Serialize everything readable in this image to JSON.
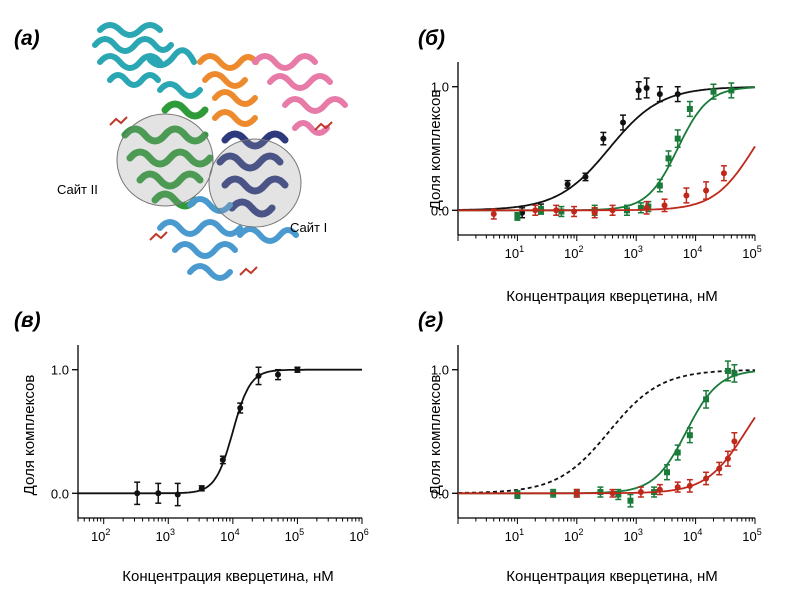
{
  "panels": {
    "a": {
      "letter": "(а)",
      "site1": "Сайт I",
      "site2": "Сайт II"
    }
  },
  "chart_data": [
    {
      "id": "b",
      "letter": "(б)",
      "type": "scatter",
      "xscale": "log",
      "xlim": [
        1,
        100000
      ],
      "ylim": [
        -0.2,
        1.2
      ],
      "xticks": [
        10,
        100,
        1000,
        10000,
        100000
      ],
      "xtick_labels": [
        [
          "10",
          "1"
        ],
        [
          "10",
          "2"
        ],
        [
          "10",
          "3"
        ],
        [
          "10",
          "4"
        ],
        [
          "10",
          "5"
        ]
      ],
      "yticks": [
        0,
        1
      ],
      "ytick_labels": [
        "0.0",
        "1.0"
      ],
      "xlabel": "Концентрация кверцетина, нМ",
      "ylabel": "Доля комплексов",
      "series": [
        {
          "color": "#111111",
          "marker": "circle",
          "fit": {
            "ec50": 350,
            "hill": 1.0,
            "style": "solid"
          },
          "points": [
            [
              12,
              -0.02,
              0.04
            ],
            [
              25,
              0.01,
              0.04
            ],
            [
              70,
              0.21,
              0.03
            ],
            [
              140,
              0.27,
              0.03
            ],
            [
              280,
              0.58,
              0.05
            ],
            [
              600,
              0.71,
              0.06
            ],
            [
              1100,
              0.97,
              0.07
            ],
            [
              1500,
              0.99,
              0.08
            ],
            [
              2500,
              0.94,
              0.06
            ],
            [
              5000,
              0.94,
              0.06
            ]
          ]
        },
        {
          "color": "#1a7a3a",
          "marker": "square",
          "fit": {
            "ec50": 5000,
            "hill": 1.7,
            "style": "solid"
          },
          "points": [
            [
              10,
              -0.05,
              0.03
            ],
            [
              25,
              0.0,
              0.03
            ],
            [
              55,
              -0.01,
              0.04
            ],
            [
              200,
              0.0,
              0.04
            ],
            [
              700,
              0.0,
              0.04
            ],
            [
              1200,
              0.02,
              0.04
            ],
            [
              1600,
              0.03,
              0.04
            ],
            [
              2500,
              0.2,
              0.05
            ],
            [
              3500,
              0.42,
              0.06
            ],
            [
              5000,
              0.58,
              0.07
            ],
            [
              8000,
              0.82,
              0.06
            ],
            [
              20000,
              0.96,
              0.06
            ],
            [
              40000,
              0.97,
              0.06
            ]
          ]
        },
        {
          "color": "#c0281b",
          "marker": "circle",
          "fit": {
            "ec50": 95000,
            "hill": 1.3,
            "style": "solid"
          },
          "points": [
            [
              4,
              -0.03,
              0.04
            ],
            [
              20,
              0.0,
              0.04
            ],
            [
              45,
              0.0,
              0.04
            ],
            [
              90,
              -0.01,
              0.04
            ],
            [
              200,
              -0.02,
              0.04
            ],
            [
              400,
              0.0,
              0.04
            ],
            [
              1500,
              0.02,
              0.05
            ],
            [
              3000,
              0.04,
              0.05
            ],
            [
              7000,
              0.12,
              0.06
            ],
            [
              15000,
              0.16,
              0.07
            ],
            [
              30000,
              0.3,
              0.06
            ]
          ]
        }
      ]
    },
    {
      "id": "v",
      "letter": "(в)",
      "type": "scatter",
      "xscale": "log",
      "xlim": [
        40,
        1000000
      ],
      "ylim": [
        -0.2,
        1.2
      ],
      "xticks": [
        100,
        1000,
        10000,
        100000,
        1000000
      ],
      "xtick_labels": [
        [
          "10",
          "2"
        ],
        [
          "10",
          "3"
        ],
        [
          "10",
          "4"
        ],
        [
          "10",
          "5"
        ],
        [
          "10",
          "6"
        ]
      ],
      "yticks": [
        0,
        1
      ],
      "ytick_labels": [
        "0.0",
        "1.0"
      ],
      "xlabel": "Концентрация кверцетина, нМ",
      "ylabel": "Доля комплексов",
      "series": [
        {
          "color": "#111111",
          "marker": "circle",
          "fit": {
            "ec50": 10000,
            "hill": 3.2,
            "style": "solid"
          },
          "points": [
            [
              330,
              0.0,
              0.09
            ],
            [
              700,
              0.0,
              0.08
            ],
            [
              1400,
              -0.01,
              0.09
            ],
            [
              3300,
              0.04,
              0.02
            ],
            [
              7000,
              0.27,
              0.03
            ],
            [
              13000,
              0.69,
              0.04
            ],
            [
              25000,
              0.95,
              0.07
            ],
            [
              50000,
              0.96,
              0.04
            ],
            [
              100000,
              1.0,
              0.02
            ]
          ]
        }
      ]
    },
    {
      "id": "g",
      "letter": "(г)",
      "type": "scatter",
      "xscale": "log",
      "xlim": [
        1,
        100000
      ],
      "ylim": [
        -0.2,
        1.2
      ],
      "xticks": [
        10,
        100,
        1000,
        10000,
        100000
      ],
      "xtick_labels": [
        [
          "10",
          "1"
        ],
        [
          "10",
          "2"
        ],
        [
          "10",
          "3"
        ],
        [
          "10",
          "4"
        ],
        [
          "10",
          "5"
        ]
      ],
      "yticks": [
        0,
        1
      ],
      "ytick_labels": [
        "0.0",
        "1.0"
      ],
      "xlabel": "Концентрация кверцетина, нМ",
      "ylabel": "Доля комплексов",
      "series": [
        {
          "color": "#111111",
          "marker": "none",
          "fit": {
            "ec50": 350,
            "hill": 1.0,
            "style": "dashed"
          },
          "points": []
        },
        {
          "color": "#1a7a3a",
          "marker": "square",
          "fit": {
            "ec50": 7000,
            "hill": 1.6,
            "style": "solid"
          },
          "points": [
            [
              10,
              -0.01,
              0.03
            ],
            [
              40,
              0.0,
              0.03
            ],
            [
              100,
              0.0,
              0.03
            ],
            [
              250,
              0.01,
              0.04
            ],
            [
              500,
              -0.01,
              0.04
            ],
            [
              800,
              -0.06,
              0.05
            ],
            [
              2000,
              0.01,
              0.04
            ],
            [
              3300,
              0.17,
              0.06
            ],
            [
              5000,
              0.33,
              0.06
            ],
            [
              8000,
              0.47,
              0.06
            ],
            [
              15000,
              0.76,
              0.07
            ],
            [
              35000,
              0.99,
              0.08
            ],
            [
              45000,
              0.97,
              0.07
            ]
          ]
        },
        {
          "color": "#c0281b",
          "marker": "circle",
          "fit": {
            "ec50": 70000,
            "hill": 1.3,
            "style": "solid"
          },
          "points": [
            [
              100,
              0.0,
              0.03
            ],
            [
              400,
              0.0,
              0.03
            ],
            [
              1200,
              0.01,
              0.04
            ],
            [
              2500,
              0.03,
              0.04
            ],
            [
              5000,
              0.05,
              0.04
            ],
            [
              8000,
              0.06,
              0.05
            ],
            [
              15000,
              0.12,
              0.05
            ],
            [
              25000,
              0.2,
              0.05
            ],
            [
              35000,
              0.28,
              0.06
            ],
            [
              45000,
              0.42,
              0.07
            ]
          ]
        }
      ]
    }
  ]
}
